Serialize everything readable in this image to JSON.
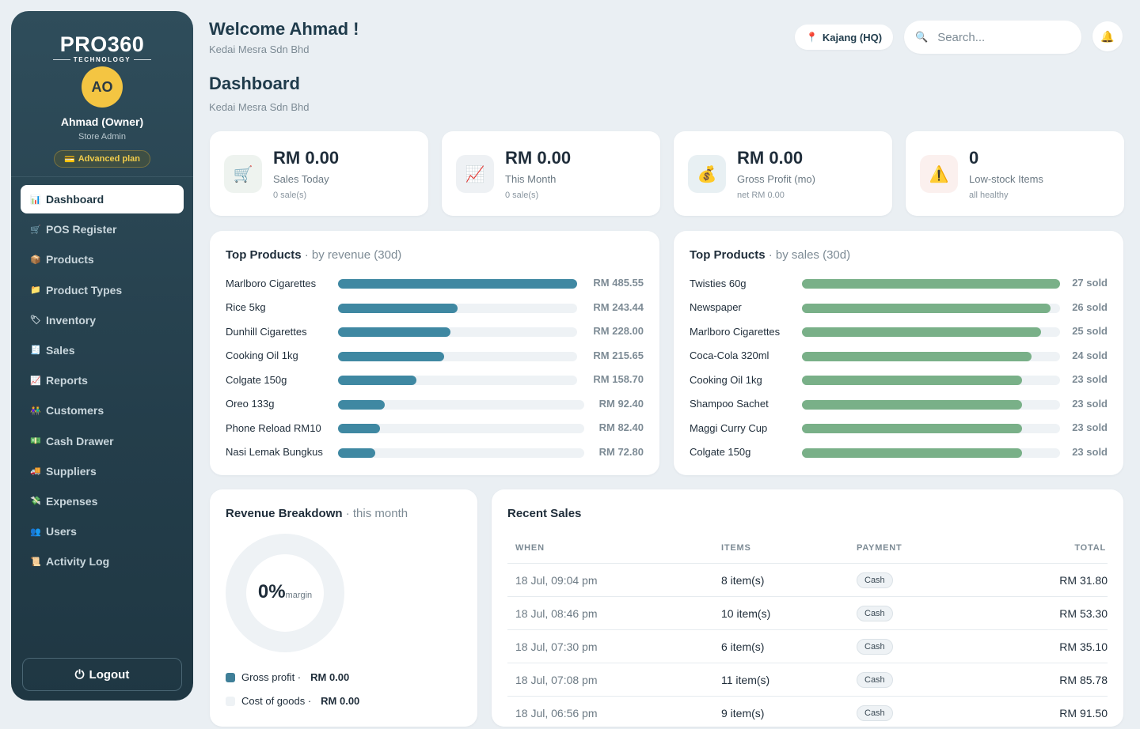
{
  "sidebar": {
    "logo_main": "PRO360",
    "logo_sub": "TECHNOLOGY",
    "avatar_initials": "AO",
    "user_name": "Ahmad (Owner)",
    "user_role": "Store Admin",
    "plan_icon": "💳",
    "plan_label": "Advanced plan",
    "items": [
      {
        "icon": "📊",
        "icon_name": "chart-icon",
        "label": "Dashboard",
        "active": true
      },
      {
        "icon": "🛒",
        "icon_name": "cart-icon",
        "label": "POS Register"
      },
      {
        "icon": "📦",
        "icon_name": "package-icon",
        "label": "Products"
      },
      {
        "icon": "📁",
        "icon_name": "folder-icon",
        "label": "Product Types"
      },
      {
        "icon": "🏷",
        "icon_name": "tag-icon",
        "label": "Inventory"
      },
      {
        "icon": "🧾",
        "icon_name": "receipt-icon",
        "label": "Sales"
      },
      {
        "icon": "📈",
        "icon_name": "trend-icon",
        "label": "Reports"
      },
      {
        "icon": "👫",
        "icon_name": "people-icon",
        "label": "Customers"
      },
      {
        "icon": "💵",
        "icon_name": "cash-icon",
        "label": "Cash Drawer"
      },
      {
        "icon": "🚚",
        "icon_name": "truck-icon",
        "label": "Suppliers"
      },
      {
        "icon": "💸",
        "icon_name": "money-wings-icon",
        "label": "Expenses"
      },
      {
        "icon": "👥",
        "icon_name": "users-icon",
        "label": "Users"
      },
      {
        "icon": "📜",
        "icon_name": "log-icon",
        "label": "Activity Log"
      }
    ],
    "logout_icon": "⏻",
    "logout_label": "Logout"
  },
  "header": {
    "welcome": "Welcome Ahmad !",
    "company": "Kedai Mesra Sdn Bhd",
    "page_title": "Dashboard",
    "page_subtitle": "Kedai Mesra Sdn Bhd",
    "location_icon": "📍",
    "location": "Kajang (HQ)",
    "search_icon": "🔍",
    "search_placeholder": "Search...",
    "bell_icon": "🔔"
  },
  "stats": [
    {
      "icon": "🛒",
      "icon_bg": "#eef3ef",
      "value": "RM 0.00",
      "label": "Sales Today",
      "sub": "0 sale(s)"
    },
    {
      "icon": "📈",
      "icon_bg": "#eef1f4",
      "value": "RM 0.00",
      "label": "This Month",
      "sub": "0 sale(s)"
    },
    {
      "icon": "💰",
      "icon_bg": "#e8f0f3",
      "value": "RM 0.00",
      "label": "Gross Profit (mo)",
      "sub": "net RM 0.00"
    },
    {
      "icon": "⚠️",
      "icon_bg": "#fbf0ee",
      "value": "0",
      "label": "Low-stock Items",
      "sub": "all healthy"
    }
  ],
  "top_revenue": {
    "title": "Top Products",
    "subtitle": "· by revenue (30d)",
    "color": "#3f88a2",
    "rows": [
      {
        "name": "Marlboro Cigarettes",
        "value": "RM 485.55",
        "fraction": 1.0
      },
      {
        "name": "Rice 5kg",
        "value": "RM 243.44",
        "fraction": 0.501
      },
      {
        "name": "Dunhill Cigarettes",
        "value": "RM 228.00",
        "fraction": 0.47
      },
      {
        "name": "Cooking Oil 1kg",
        "value": "RM 215.65",
        "fraction": 0.444
      },
      {
        "name": "Colgate 150g",
        "value": "RM 158.70",
        "fraction": 0.327
      },
      {
        "name": "Oreo 133g",
        "value": "RM 92.40",
        "fraction": 0.19
      },
      {
        "name": "Phone Reload RM10",
        "value": "RM 82.40",
        "fraction": 0.17
      },
      {
        "name": "Nasi Lemak Bungkus",
        "value": "RM 72.80",
        "fraction": 0.15
      }
    ]
  },
  "top_sales": {
    "title": "Top Products",
    "subtitle": "· by sales (30d)",
    "color": "#79b088",
    "rows": [
      {
        "name": "Twisties 60g",
        "value": "27 sold",
        "fraction": 1.0
      },
      {
        "name": "Newspaper",
        "value": "26 sold",
        "fraction": 0.963
      },
      {
        "name": "Marlboro Cigarettes",
        "value": "25 sold",
        "fraction": 0.926
      },
      {
        "name": "Coca-Cola 320ml",
        "value": "24 sold",
        "fraction": 0.889
      },
      {
        "name": "Cooking Oil 1kg",
        "value": "23 sold",
        "fraction": 0.852
      },
      {
        "name": "Shampoo Sachet",
        "value": "23 sold",
        "fraction": 0.852
      },
      {
        "name": "Maggi Curry Cup",
        "value": "23 sold",
        "fraction": 0.852
      },
      {
        "name": "Colgate 150g",
        "value": "23 sold",
        "fraction": 0.852
      }
    ]
  },
  "revenue_breakdown": {
    "title": "Revenue Breakdown",
    "subtitle": "· this month",
    "margin_pct": "0%",
    "margin_label": "margin",
    "legend": [
      {
        "label": "Gross profit ·",
        "value": "RM 0.00",
        "color": "#3f7f98"
      },
      {
        "label": "Cost of goods ·",
        "value": "RM 0.00",
        "color": "#eef2f5"
      }
    ]
  },
  "recent_sales": {
    "title": "Recent Sales",
    "columns": [
      "WHEN",
      "ITEMS",
      "PAYMENT",
      "TOTAL"
    ],
    "rows": [
      {
        "when": "18 Jul, 09:04 pm",
        "items": "8 item(s)",
        "payment": "Cash",
        "total": "RM 31.80"
      },
      {
        "when": "18 Jul, 08:46 pm",
        "items": "10 item(s)",
        "payment": "Cash",
        "total": "RM 53.30"
      },
      {
        "when": "18 Jul, 07:30 pm",
        "items": "6 item(s)",
        "payment": "Cash",
        "total": "RM 35.10"
      },
      {
        "when": "18 Jul, 07:08 pm",
        "items": "11 item(s)",
        "payment": "Cash",
        "total": "RM 85.78"
      },
      {
        "when": "18 Jul, 06:56 pm",
        "items": "9 item(s)",
        "payment": "Cash",
        "total": "RM 91.50"
      }
    ]
  }
}
